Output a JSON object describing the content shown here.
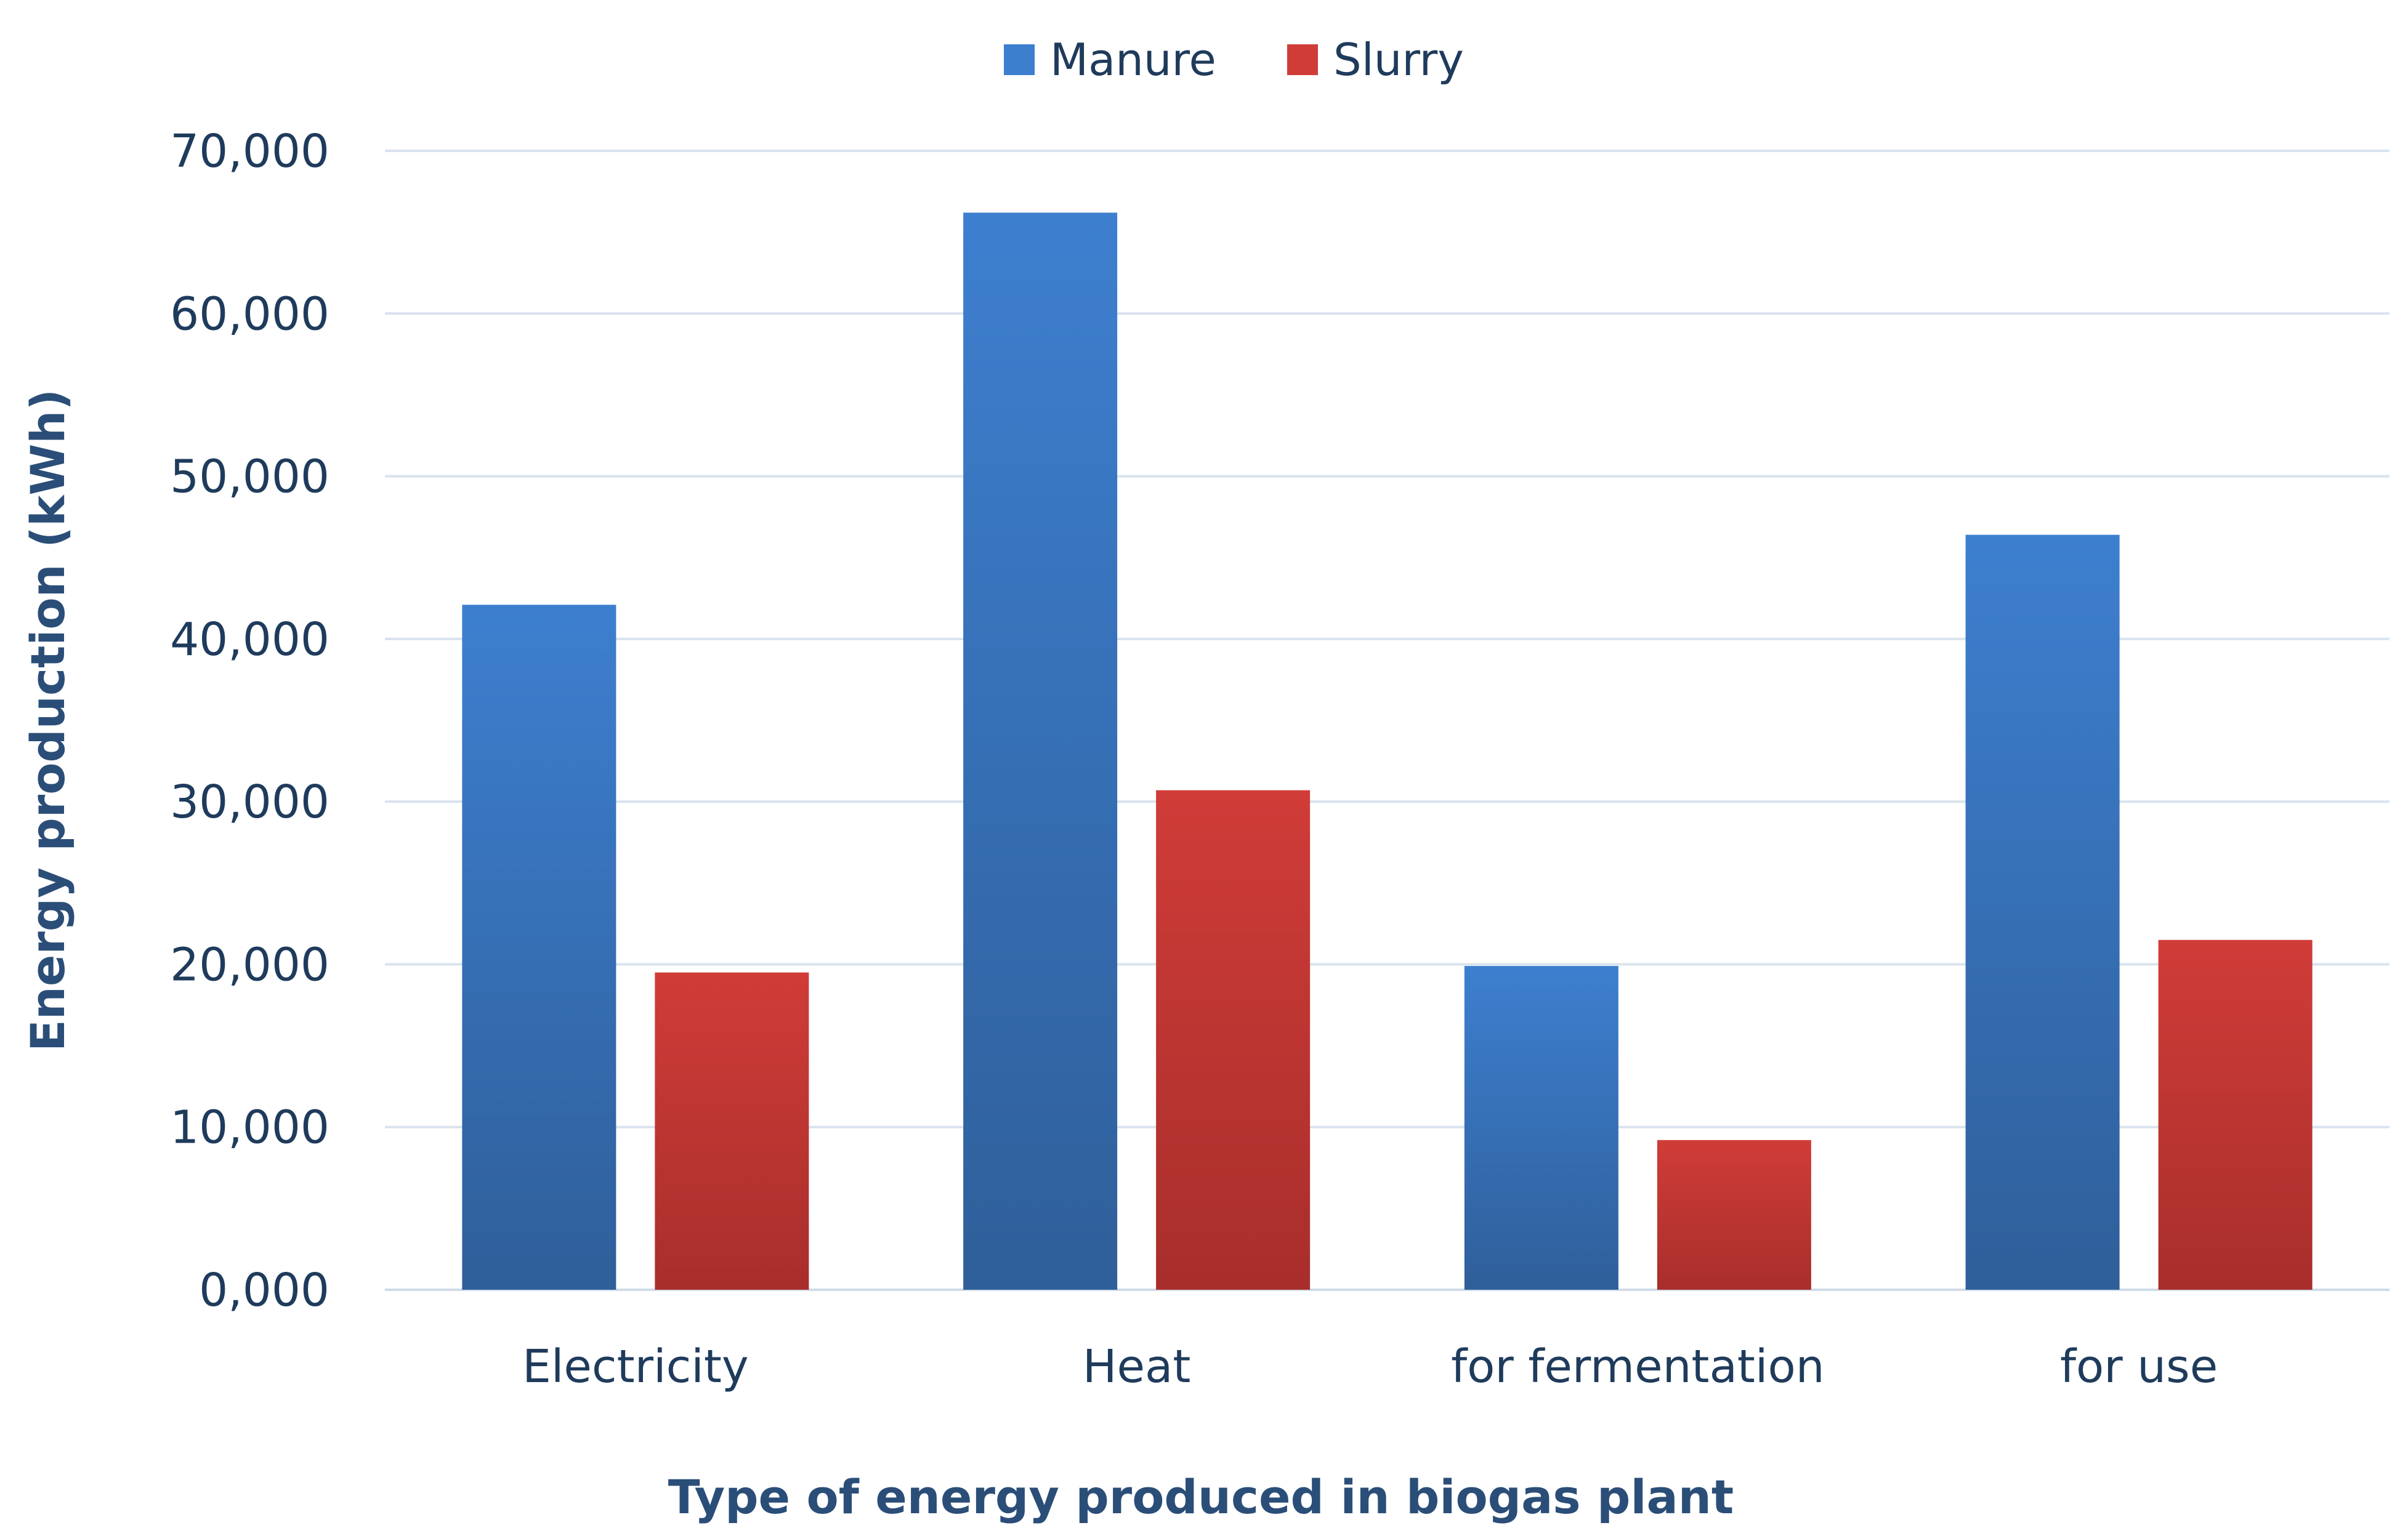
{
  "chart_data": {
    "type": "bar",
    "title": "",
    "xlabel": "Type of energy produced in biogas plant",
    "ylabel": "Energy production (kWh)",
    "categories": [
      "Electricity",
      "Heat",
      "for fermentation",
      "for use"
    ],
    "series": [
      {
        "name": "Manure",
        "values": [
          42100,
          66200,
          19900,
          46400
        ]
      },
      {
        "name": "Slurry",
        "values": [
          19500,
          30700,
          9200,
          21500
        ]
      }
    ],
    "ylim": [
      0,
      70000
    ],
    "yticks": [
      0,
      10000,
      20000,
      30000,
      40000,
      50000,
      60000,
      70000
    ],
    "ytick_labels": [
      "0,000",
      "10,000",
      "20,000",
      "30,000",
      "40,000",
      "50,000",
      "60,000",
      "70,000"
    ],
    "grid": true,
    "legend_position": "top-center",
    "colors": {
      "Manure": "#3d7fcf",
      "Manure_dark": "#2f5f9a",
      "Slurry": "#d03c38",
      "Slurry_dark": "#a82e2b"
    }
  }
}
